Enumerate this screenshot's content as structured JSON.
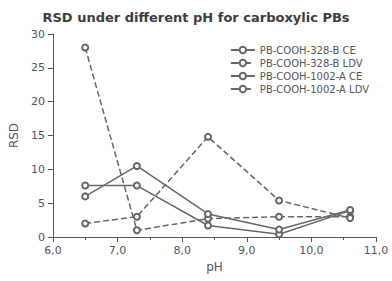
{
  "chart_data": {
    "type": "line",
    "title": "RSD under different pH for carboxylic PBs",
    "x_label": "pH",
    "y_label": "RSD",
    "x": [
      6.5,
      7.3,
      8.4,
      9.5,
      10.6
    ],
    "series": [
      {
        "name": "PB-COOH-328-B CE",
        "color": "#666666",
        "line_style": "solid",
        "marker": "circle",
        "values": [
          7.6,
          7.6,
          1.7,
          0.4,
          3.9
        ]
      },
      {
        "name": "PB-COOH-328-B LDV",
        "color": "#666666",
        "line_style": "dashed",
        "marker": "circle",
        "values": [
          28.0,
          1.0,
          2.7,
          3.0,
          3.0
        ]
      },
      {
        "name": "PB-COOH-1002-A CE",
        "color": "#666666",
        "line_style": "solid",
        "marker": "circle",
        "values": [
          6.0,
          10.5,
          3.4,
          1.1,
          4.0
        ]
      },
      {
        "name": "PB-COOH-1002-A LDV",
        "color": "#666666",
        "line_style": "dashed",
        "marker": "circle",
        "values": [
          2.0,
          3.0,
          14.8,
          5.4,
          2.8
        ]
      }
    ],
    "xlim": [
      6.0,
      11.0
    ],
    "xticks": [
      {
        "value": 6.0,
        "label": "6,0"
      },
      {
        "value": 7.0,
        "label": "7,0"
      },
      {
        "value": 8.0,
        "label": "8,0"
      },
      {
        "value": 9.0,
        "label": "9,0"
      },
      {
        "value": 10.0,
        "label": "10,0"
      },
      {
        "value": 11.0,
        "label": "11,0"
      }
    ],
    "ylim": [
      0,
      30
    ],
    "yticks": [
      0,
      5,
      10,
      15,
      20,
      25,
      30
    ],
    "grid": false,
    "legend": "upper right"
  }
}
